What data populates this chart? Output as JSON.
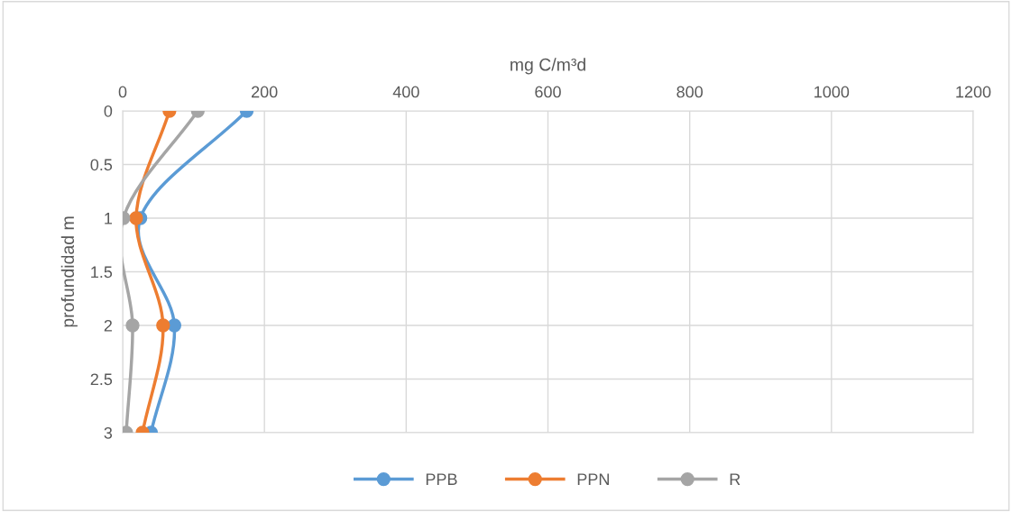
{
  "chart_data": {
    "type": "line",
    "xlabel": "mg C/m³d",
    "ylabel": "profundidad m",
    "xlim": [
      0,
      1200
    ],
    "xticks": [
      0,
      200,
      400,
      600,
      800,
      1000,
      1200
    ],
    "ylim": [
      3,
      0
    ],
    "yticks": [
      0,
      0.5,
      1,
      1.5,
      2,
      2.5,
      3
    ],
    "grid": true,
    "legend": "bottom",
    "marker": "circle",
    "line_style": "solid",
    "series": [
      {
        "name": "PPB",
        "color": "#5b9bd5",
        "x": [
          175,
          25,
          73,
          40
        ],
        "values": [
          0,
          1,
          2,
          3
        ]
      },
      {
        "name": "PPN",
        "color": "#ed7d31",
        "x": [
          66,
          19,
          57,
          28
        ],
        "values": [
          0,
          1,
          2,
          3
        ]
      },
      {
        "name": "R",
        "color": "#a5a5a5",
        "x": [
          106,
          1,
          14,
          5
        ],
        "values": [
          0,
          1,
          2,
          3
        ]
      }
    ]
  }
}
